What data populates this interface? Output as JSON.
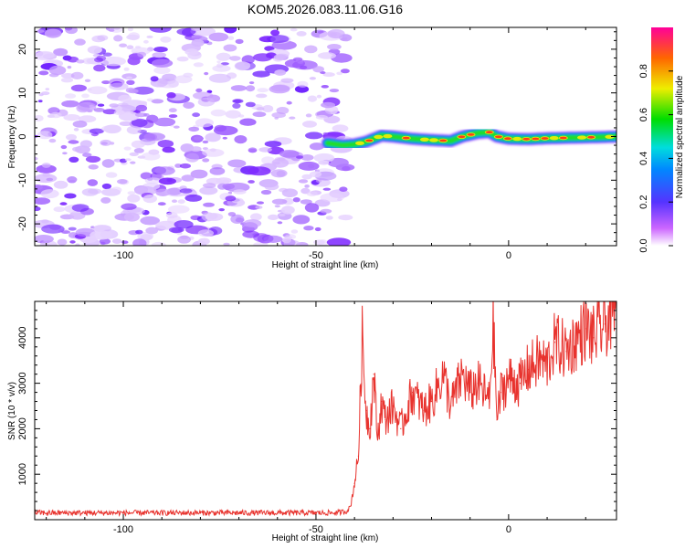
{
  "title": "KOM5.2026.083.11.06.G16",
  "colors": {
    "snr_line": "#e8332e",
    "axis": "#000000",
    "background": "#ffffff"
  },
  "chart_data": [
    {
      "type": "heatmap",
      "title": "KOM5.2026.083.11.06.G16",
      "xlabel": "Height of straight line (km)",
      "ylabel": "Frequency (Hz)",
      "xlim": [
        -123,
        28
      ],
      "ylim": [
        -25,
        25
      ],
      "x_ticks": [
        -100,
        -50,
        0
      ],
      "x_tick_labels": [
        "-100",
        "-50",
        "0"
      ],
      "y_ticks": [
        -20,
        -10,
        0,
        10,
        20
      ],
      "y_tick_labels": [
        "-20",
        "-10",
        "0",
        "10",
        "20"
      ],
      "noise_region_x": [
        -123,
        -42
      ],
      "ridge": {
        "description": "narrow high-amplitude frequency track near 0 Hz",
        "x": [
          -47,
          -43,
          -40,
          -37,
          -33,
          -30,
          -25,
          -20,
          -15,
          -12,
          -8,
          -5,
          -3,
          0,
          5,
          10,
          15,
          20,
          25,
          28
        ],
        "freq": [
          -1.5,
          -2.0,
          -1.8,
          -1.2,
          0.2,
          0.0,
          -0.5,
          -0.8,
          -1.0,
          0.0,
          0.8,
          1.0,
          0.0,
          -0.5,
          -0.6,
          -0.4,
          -0.3,
          -0.2,
          -0.1,
          0.0
        ]
      },
      "colorbar": {
        "label": "Normalized spectral amplitude",
        "range": [
          0.0,
          1.0
        ],
        "ticks": [
          0.0,
          0.2,
          0.4,
          0.6,
          0.8
        ],
        "tick_labels": [
          "0.0",
          "0.2",
          "0.4",
          "0.6",
          "0.8"
        ]
      }
    },
    {
      "type": "line",
      "xlabel": "Height of straight line (km)",
      "ylabel": "SNR (10 * v/v)",
      "xlim": [
        -123,
        28
      ],
      "ylim": [
        0,
        4800
      ],
      "x_ticks": [
        -100,
        -50,
        0
      ],
      "x_tick_labels": [
        "-100",
        "-50",
        "0"
      ],
      "y_ticks": [
        1000,
        2000,
        3000,
        4000
      ],
      "y_tick_labels": [
        "1000",
        "2000",
        "3000",
        "4000"
      ],
      "series": [
        {
          "name": "SNR",
          "x": [
            -123,
            -100,
            -80,
            -60,
            -45,
            -42,
            -41,
            -40,
            -39,
            -38,
            -37,
            -36,
            -35,
            -34,
            -33,
            -32,
            -30,
            -28,
            -25,
            -22,
            -20,
            -17,
            -15,
            -12,
            -10,
            -8,
            -5,
            -4,
            -3,
            -2,
            0,
            3,
            5,
            8,
            10,
            12,
            15,
            18,
            20,
            22,
            25,
            28
          ],
          "values": [
            150,
            150,
            150,
            150,
            150,
            180,
            300,
            800,
            1400,
            4000,
            2400,
            2000,
            3200,
            1800,
            2600,
            2200,
            2500,
            2000,
            2800,
            2400,
            2600,
            3200,
            2500,
            3200,
            2800,
            3000,
            2600,
            4300,
            2200,
            2800,
            3100,
            3000,
            3300,
            3500,
            3400,
            3900,
            3700,
            4000,
            4200,
            4000,
            4300,
            4600
          ]
        }
      ]
    }
  ]
}
